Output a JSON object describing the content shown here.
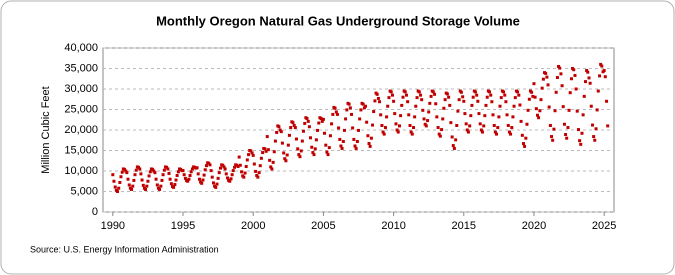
{
  "chart_data": {
    "type": "scatter",
    "title": "Monthly Oregon Natural Gas Underground Storage Volume",
    "y_label": "Million Cubic Feet",
    "source": "Source: U.S. Energy Information Administration",
    "xlim": [
      1989.3,
      2025.7
    ],
    "xticks": [
      1990,
      1995,
      2000,
      2005,
      2010,
      2015,
      2020,
      2025
    ],
    "ylim": [
      0,
      40000
    ],
    "yticks": [
      0,
      {
        "value": 5000,
        "label": "5,000"
      },
      {
        "value": 10000,
        "label": "10,000"
      },
      {
        "value": 15000,
        "label": "15,000"
      },
      {
        "value": 20000,
        "label": "20,000"
      },
      {
        "value": 25000,
        "label": "25,000"
      },
      {
        "value": 30000,
        "label": "30,000"
      },
      {
        "value": 35000,
        "label": "35,000"
      },
      {
        "value": 40000,
        "label": "40,000"
      }
    ],
    "grid": true,
    "series": [
      {
        "color": "#c00000",
        "x": [
          1990,
          1990.08,
          1990.17,
          1990.25,
          1990.33,
          1990.42,
          1990.5,
          1990.58,
          1990.67,
          1990.75,
          1990.83,
          1990.92,
          1991,
          1991.08,
          1991.17,
          1991.25,
          1991.33,
          1991.42,
          1991.5,
          1991.58,
          1991.67,
          1991.75,
          1991.83,
          1991.92,
          1992,
          1992.08,
          1992.17,
          1992.25,
          1992.33,
          1992.42,
          1992.5,
          1992.58,
          1992.67,
          1992.75,
          1992.83,
          1992.92,
          1993,
          1993.08,
          1993.17,
          1993.25,
          1993.33,
          1993.42,
          1993.5,
          1993.58,
          1993.67,
          1993.75,
          1993.83,
          1993.92,
          1994,
          1994.08,
          1994.17,
          1994.25,
          1994.33,
          1994.42,
          1994.5,
          1994.58,
          1994.67,
          1994.75,
          1994.83,
          1994.92,
          1995,
          1995.08,
          1995.17,
          1995.25,
          1995.33,
          1995.42,
          1995.5,
          1995.58,
          1995.67,
          1995.75,
          1995.83,
          1995.92,
          1996,
          1996.08,
          1996.17,
          1996.25,
          1996.33,
          1996.42,
          1996.5,
          1996.58,
          1996.67,
          1996.75,
          1996.83,
          1996.92,
          1997,
          1997.08,
          1997.17,
          1997.25,
          1997.33,
          1997.42,
          1997.5,
          1997.58,
          1997.67,
          1997.75,
          1997.83,
          1997.92,
          1998,
          1998.08,
          1998.17,
          1998.25,
          1998.33,
          1998.42,
          1998.5,
          1998.58,
          1998.67,
          1998.75,
          1998.83,
          1998.92,
          1999,
          1999.08,
          1999.17,
          1999.25,
          1999.33,
          1999.42,
          1999.5,
          1999.58,
          1999.67,
          1999.75,
          1999.83,
          1999.92,
          2000,
          2000.08,
          2000.17,
          2000.25,
          2000.33,
          2000.42,
          2000.5,
          2000.58,
          2000.67,
          2000.75,
          2000.83,
          2000.92,
          2001,
          2001.08,
          2001.17,
          2001.25,
          2001.33,
          2001.42,
          2001.5,
          2001.58,
          2001.67,
          2001.75,
          2001.83,
          2001.92,
          2002,
          2002.08,
          2002.17,
          2002.25,
          2002.33,
          2002.42,
          2002.5,
          2002.58,
          2002.67,
          2002.75,
          2002.83,
          2002.92,
          2003,
          2003.08,
          2003.17,
          2003.25,
          2003.33,
          2003.42,
          2003.5,
          2003.58,
          2003.67,
          2003.75,
          2003.83,
          2003.92,
          2004,
          2004.08,
          2004.17,
          2004.25,
          2004.33,
          2004.42,
          2004.5,
          2004.58,
          2004.67,
          2004.75,
          2004.83,
          2004.92,
          2005,
          2005.08,
          2005.17,
          2005.25,
          2005.33,
          2005.42,
          2005.5,
          2005.58,
          2005.67,
          2005.75,
          2005.83,
          2005.92,
          2006,
          2006.08,
          2006.17,
          2006.25,
          2006.33,
          2006.42,
          2006.5,
          2006.58,
          2006.67,
          2006.75,
          2006.83,
          2006.92,
          2007,
          2007.08,
          2007.17,
          2007.25,
          2007.33,
          2007.42,
          2007.5,
          2007.58,
          2007.67,
          2007.75,
          2007.83,
          2007.92,
          2008,
          2008.08,
          2008.17,
          2008.25,
          2008.33,
          2008.42,
          2008.5,
          2008.58,
          2008.67,
          2008.75,
          2008.83,
          2008.92,
          2009,
          2009.08,
          2009.17,
          2009.25,
          2009.33,
          2009.42,
          2009.5,
          2009.58,
          2009.67,
          2009.75,
          2009.83,
          2009.92,
          2010,
          2010.08,
          2010.17,
          2010.25,
          2010.33,
          2010.42,
          2010.5,
          2010.58,
          2010.67,
          2010.75,
          2010.83,
          2010.92,
          2011,
          2011.08,
          2011.17,
          2011.25,
          2011.33,
          2011.42,
          2011.5,
          2011.58,
          2011.67,
          2011.75,
          2011.83,
          2011.92,
          2012,
          2012.08,
          2012.17,
          2012.25,
          2012.33,
          2012.42,
          2012.5,
          2012.58,
          2012.67,
          2012.75,
          2012.83,
          2012.92,
          2013,
          2013.08,
          2013.17,
          2013.25,
          2013.33,
          2013.42,
          2013.5,
          2013.58,
          2013.67,
          2013.75,
          2013.83,
          2013.92,
          2014,
          2014.08,
          2014.17,
          2014.25,
          2014.33,
          2014.42,
          2014.5,
          2014.58,
          2014.67,
          2014.75,
          2014.83,
          2014.92,
          2015,
          2015.08,
          2015.17,
          2015.25,
          2015.33,
          2015.42,
          2015.5,
          2015.58,
          2015.67,
          2015.75,
          2015.83,
          2015.92,
          2016,
          2016.08,
          2016.17,
          2016.25,
          2016.33,
          2016.42,
          2016.5,
          2016.58,
          2016.67,
          2016.75,
          2016.83,
          2016.92,
          2017,
          2017.08,
          2017.17,
          2017.25,
          2017.33,
          2017.42,
          2017.5,
          2017.58,
          2017.67,
          2017.75,
          2017.83,
          2017.92,
          2018,
          2018.08,
          2018.17,
          2018.25,
          2018.33,
          2018.42,
          2018.5,
          2018.58,
          2018.67,
          2018.75,
          2018.83,
          2018.92,
          2019,
          2019.08,
          2019.17,
          2019.25,
          2019.33,
          2019.42,
          2019.5,
          2019.58,
          2019.67,
          2019.75,
          2019.83,
          2019.92,
          2020,
          2020.08,
          2020.17,
          2020.25,
          2020.33,
          2020.42,
          2020.5,
          2020.58,
          2020.67,
          2020.75,
          2020.83,
          2020.92,
          2021,
          2021.08,
          2021.17,
          2021.25,
          2021.33,
          2021.42,
          2021.5,
          2021.58,
          2021.67,
          2021.75,
          2021.83,
          2021.92,
          2022,
          2022.08,
          2022.17,
          2022.25,
          2022.33,
          2022.42,
          2022.5,
          2022.58,
          2022.67,
          2022.75,
          2022.83,
          2022.92,
          2023,
          2023.08,
          2023.17,
          2023.25,
          2023.33,
          2023.42,
          2023.5,
          2023.58,
          2023.67,
          2023.75,
          2023.83,
          2023.92,
          2024,
          2024.08,
          2024.17,
          2024.25,
          2024.33,
          2024.42,
          2024.5,
          2024.58,
          2024.67,
          2024.75,
          2024.83,
          2024.92,
          2025,
          2025.08,
          2025.17,
          2025.25
        ],
        "values": [
          9100,
          7500,
          6100,
          5300,
          5000,
          5800,
          7200,
          8600,
          9700,
          10500,
          10400,
          10000,
          9600,
          8000,
          6600,
          5800,
          5500,
          6300,
          7700,
          9100,
          10200,
          11000,
          10900,
          10500,
          9300,
          7800,
          6500,
          5800,
          5500,
          6300,
          7500,
          8800,
          9800,
          10500,
          10400,
          10000,
          9600,
          8000,
          6600,
          5800,
          5500,
          6300,
          7700,
          9100,
          10200,
          11000,
          10900,
          10500,
          9400,
          8000,
          6900,
          6200,
          6000,
          6700,
          7800,
          8900,
          9800,
          10500,
          10400,
          10100,
          10100,
          9100,
          8200,
          7700,
          7500,
          8000,
          8900,
          9800,
          10500,
          11000,
          10900,
          10700,
          10800,
          9300,
          8000,
          7300,
          7000,
          7800,
          9000,
          10300,
          11300,
          12000,
          11900,
          11500,
          10100,
          8500,
          7100,
          6300,
          6000,
          6800,
          8200,
          9600,
          10700,
          11500,
          11400,
          11000,
          10500,
          9300,
          8300,
          7700,
          7500,
          8100,
          9100,
          10100,
          10900,
          11500,
          11400,
          11100,
          13400,
          11400,
          9800,
          8800,
          8500,
          9500,
          11100,
          12700,
          14000,
          15000,
          14900,
          14400,
          13800,
          11700,
          9900,
          8900,
          8500,
          9600,
          11300,
          13100,
          14500,
          15500,
          15400,
          14800,
          18400,
          15200,
          12600,
          11000,
          10500,
          12100,
          14700,
          17300,
          19400,
          21000,
          20800,
          20000,
          19600,
          16800,
          14400,
          13000,
          12500,
          13900,
          16300,
          18700,
          20600,
          22000,
          21800,
          21100,
          20600,
          17800,
          15400,
          14000,
          13500,
          14900,
          17300,
          19700,
          21600,
          23000,
          22800,
          22100,
          20800,
          18100,
          15800,
          14500,
          14000,
          15400,
          17600,
          19900,
          21700,
          23000,
          22800,
          22100,
          22600,
          19200,
          16300,
          14600,
          14000,
          15700,
          18600,
          21500,
          23800,
          25500,
          25300,
          24400,
          23800,
          20500,
          17700,
          16100,
          15500,
          17200,
          19900,
          22700,
          24900,
          26500,
          26300,
          25400,
          23800,
          20500,
          17700,
          16100,
          15500,
          17200,
          19900,
          22700,
          24900,
          26500,
          26300,
          25400,
          25800,
          21900,
          18600,
          16700,
          16000,
          18000,
          21200,
          24500,
          27100,
          29000,
          28700,
          27700,
          26900,
          23700,
          21100,
          19500,
          19000,
          20600,
          23200,
          25800,
          27900,
          29500,
          29300,
          28500,
          27000,
          24000,
          21500,
          20000,
          19500,
          21000,
          23500,
          26000,
          28000,
          29500,
          29300,
          28500,
          26900,
          23700,
          21100,
          19500,
          19000,
          20600,
          23200,
          25800,
          27900,
          29500,
          29300,
          28500,
          27400,
          24800,
          22700,
          21400,
          21000,
          22300,
          24400,
          26500,
          28200,
          29500,
          29300,
          28700,
          26400,
          23200,
          20600,
          19000,
          18500,
          20100,
          22700,
          25300,
          27400,
          29000,
          28800,
          28000,
          26000,
          21800,
          18300,
          16200,
          15500,
          17600,
          21100,
          24600,
          27400,
          29500,
          29200,
          28100,
          27000,
          24000,
          21500,
          20000,
          19500,
          21000,
          23500,
          26000,
          28000,
          29500,
          29300,
          28500,
          27000,
          24000,
          21500,
          20000,
          19500,
          21000,
          23500,
          26000,
          28000,
          29500,
          29300,
          28500,
          26900,
          23700,
          21100,
          19500,
          19000,
          20600,
          23200,
          25800,
          27900,
          29500,
          29300,
          28500,
          26900,
          23700,
          21100,
          19500,
          19000,
          20600,
          23200,
          25800,
          27900,
          29500,
          29300,
          28500,
          26100,
          22100,
          18700,
          16700,
          16000,
          18000,
          21400,
          24800,
          27500,
          29500,
          29200,
          28200,
          31300,
          28000,
          25200,
          23600,
          23000,
          24700,
          27400,
          30200,
          32400,
          34000,
          33800,
          32900,
          31000,
          25600,
          21100,
          18400,
          17500,
          20200,
          24700,
          29200,
          32800,
          35500,
          35100,
          33700,
          30800,
          25700,
          21400,
          18900,
          18000,
          20600,
          24800,
          29100,
          32500,
          35000,
          34700,
          33300,
          30000,
          24600,
          20100,
          17400,
          16500,
          19200,
          23700,
          28200,
          31800,
          34500,
          34100,
          32700,
          31400,
          25800,
          21200,
          18400,
          17500,
          20300,
          24900,
          29500,
          33200,
          36000,
          35600,
          34200,
          34500,
          33000,
          27000,
          21000
        ]
      }
    ]
  }
}
